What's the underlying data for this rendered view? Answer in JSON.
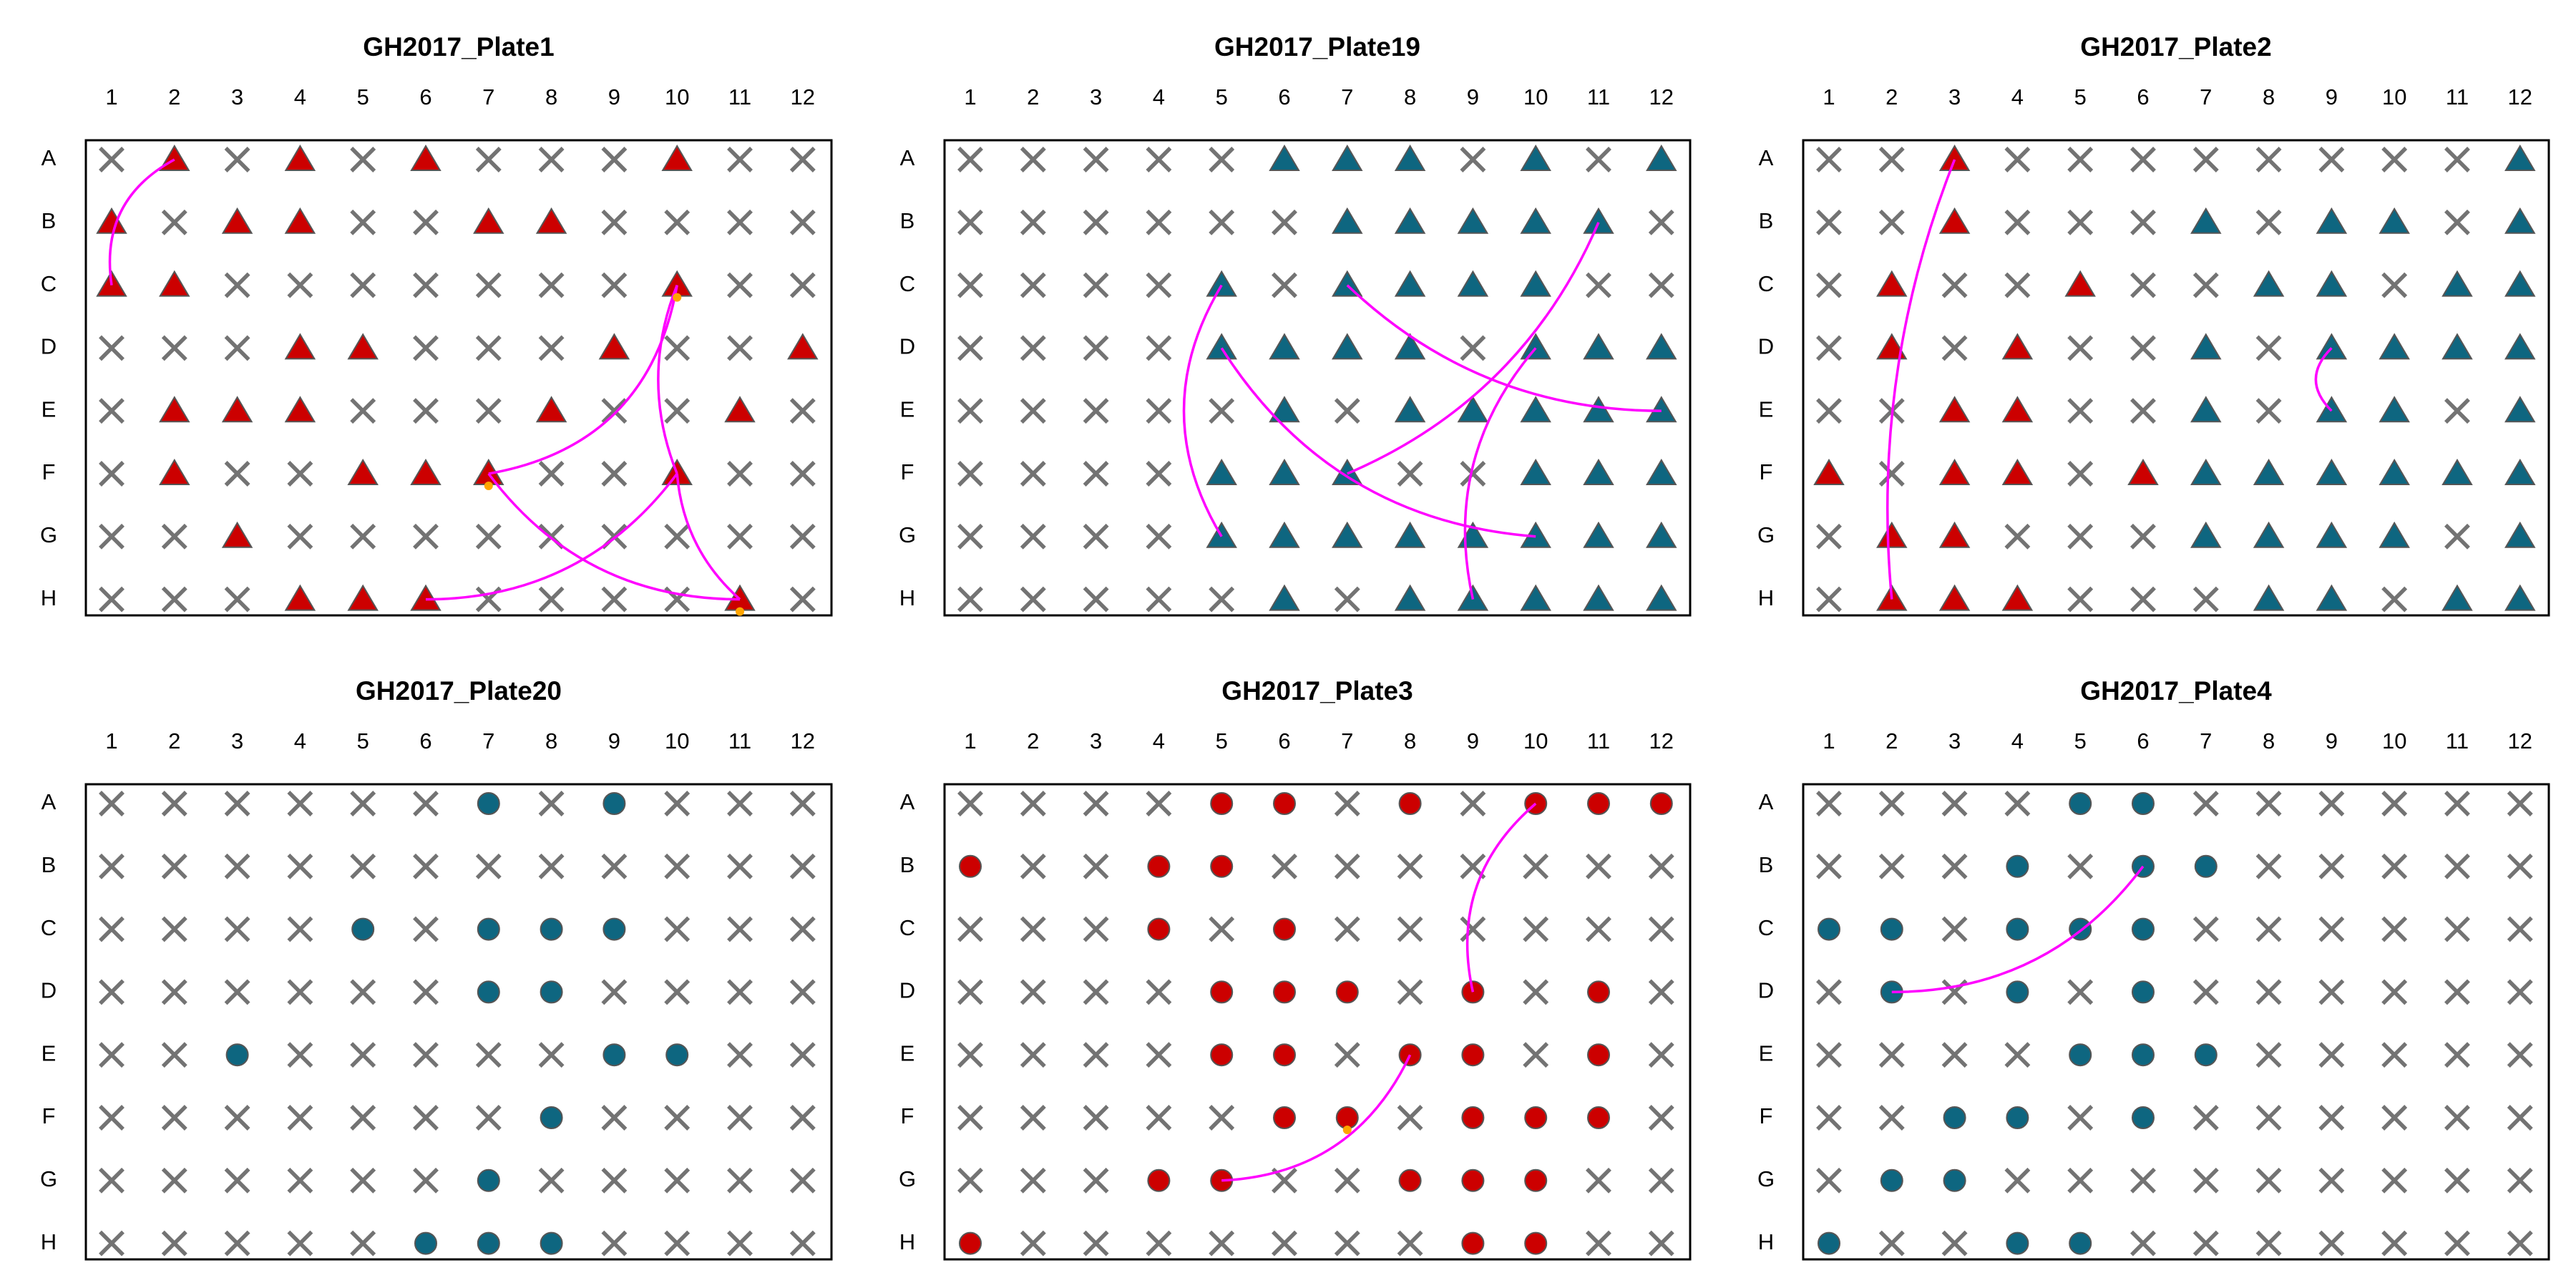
{
  "rows": [
    "A",
    "B",
    "C",
    "D",
    "E",
    "F",
    "G",
    "H"
  ],
  "columns": [
    "1",
    "2",
    "3",
    "4",
    "5",
    "6",
    "7",
    "8",
    "9",
    "10",
    "11",
    "12"
  ],
  "colors": {
    "red": "#cc0000",
    "teal": "#0e6680",
    "empty_marker": "#737373",
    "link": "#ff00ff",
    "dot": "#ffa500",
    "frame": "#000000"
  },
  "chart_data": [
    {
      "type": "scatter",
      "title": "GH2017_Plate1",
      "shape": "triangle",
      "wells": [
        {
          "well": "A2",
          "color": "red"
        },
        {
          "well": "A4",
          "color": "red"
        },
        {
          "well": "A6",
          "color": "red"
        },
        {
          "well": "A10",
          "color": "red"
        },
        {
          "well": "B1",
          "color": "red"
        },
        {
          "well": "B3",
          "color": "red"
        },
        {
          "well": "B4",
          "color": "red"
        },
        {
          "well": "B7",
          "color": "red"
        },
        {
          "well": "B8",
          "color": "red"
        },
        {
          "well": "C1",
          "color": "red"
        },
        {
          "well": "C2",
          "color": "red"
        },
        {
          "well": "C10",
          "color": "red"
        },
        {
          "well": "D4",
          "color": "red"
        },
        {
          "well": "D5",
          "color": "red"
        },
        {
          "well": "D9",
          "color": "red"
        },
        {
          "well": "D12",
          "color": "red"
        },
        {
          "well": "E2",
          "color": "red"
        },
        {
          "well": "E3",
          "color": "red"
        },
        {
          "well": "E4",
          "color": "red"
        },
        {
          "well": "E8",
          "color": "red"
        },
        {
          "well": "E11",
          "color": "red"
        },
        {
          "well": "F2",
          "color": "red"
        },
        {
          "well": "F5",
          "color": "red"
        },
        {
          "well": "F6",
          "color": "red"
        },
        {
          "well": "F7",
          "color": "red"
        },
        {
          "well": "F10",
          "color": "red"
        },
        {
          "well": "G3",
          "color": "red"
        },
        {
          "well": "H4",
          "color": "red"
        },
        {
          "well": "H5",
          "color": "red"
        },
        {
          "well": "H6",
          "color": "red"
        },
        {
          "well": "H11",
          "color": "red"
        }
      ],
      "links": [
        {
          "from": "A2",
          "to": "C1",
          "bend": 0.35
        },
        {
          "from": "F7",
          "to": "C10",
          "bend": 0.35
        },
        {
          "from": "C10",
          "to": "F10",
          "bend": 0.2
        },
        {
          "from": "H6",
          "to": "F10",
          "bend": 0.25
        },
        {
          "from": "F7",
          "to": "H11",
          "bend": 0.25
        },
        {
          "from": "F10",
          "to": "H11",
          "bend": 0.2
        }
      ],
      "dots": [
        "C10",
        "F7",
        "H11"
      ]
    },
    {
      "type": "scatter",
      "title": "GH2017_Plate19",
      "shape": "triangle",
      "wells": [
        {
          "well": "A6",
          "color": "teal"
        },
        {
          "well": "A7",
          "color": "teal"
        },
        {
          "well": "A8",
          "color": "teal"
        },
        {
          "well": "A10",
          "color": "teal"
        },
        {
          "well": "A12",
          "color": "teal"
        },
        {
          "well": "B7",
          "color": "teal"
        },
        {
          "well": "B8",
          "color": "teal"
        },
        {
          "well": "B9",
          "color": "teal"
        },
        {
          "well": "B10",
          "color": "teal"
        },
        {
          "well": "B11",
          "color": "teal"
        },
        {
          "well": "C5",
          "color": "teal"
        },
        {
          "well": "C7",
          "color": "teal"
        },
        {
          "well": "C8",
          "color": "teal"
        },
        {
          "well": "C9",
          "color": "teal"
        },
        {
          "well": "C10",
          "color": "teal"
        },
        {
          "well": "D5",
          "color": "teal"
        },
        {
          "well": "D6",
          "color": "teal"
        },
        {
          "well": "D7",
          "color": "teal"
        },
        {
          "well": "D8",
          "color": "teal"
        },
        {
          "well": "D10",
          "color": "teal"
        },
        {
          "well": "D11",
          "color": "teal"
        },
        {
          "well": "D12",
          "color": "teal"
        },
        {
          "well": "E6",
          "color": "teal"
        },
        {
          "well": "E8",
          "color": "teal"
        },
        {
          "well": "E9",
          "color": "teal"
        },
        {
          "well": "E10",
          "color": "teal"
        },
        {
          "well": "E11",
          "color": "teal"
        },
        {
          "well": "E12",
          "color": "teal"
        },
        {
          "well": "F5",
          "color": "teal"
        },
        {
          "well": "F6",
          "color": "teal"
        },
        {
          "well": "F7",
          "color": "teal"
        },
        {
          "well": "F10",
          "color": "teal"
        },
        {
          "well": "F11",
          "color": "teal"
        },
        {
          "well": "F12",
          "color": "teal"
        },
        {
          "well": "G5",
          "color": "teal"
        },
        {
          "well": "G6",
          "color": "teal"
        },
        {
          "well": "G7",
          "color": "teal"
        },
        {
          "well": "G8",
          "color": "teal"
        },
        {
          "well": "G9",
          "color": "teal"
        },
        {
          "well": "G10",
          "color": "teal"
        },
        {
          "well": "G11",
          "color": "teal"
        },
        {
          "well": "G12",
          "color": "teal"
        },
        {
          "well": "H6",
          "color": "teal"
        },
        {
          "well": "H8",
          "color": "teal"
        },
        {
          "well": "H9",
          "color": "teal"
        },
        {
          "well": "H10",
          "color": "teal"
        },
        {
          "well": "H11",
          "color": "teal"
        },
        {
          "well": "H12",
          "color": "teal"
        }
      ],
      "links": [
        {
          "from": "C5",
          "to": "G5",
          "bend": 0.3
        },
        {
          "from": "D5",
          "to": "G10",
          "bend": 0.25
        },
        {
          "from": "C7",
          "to": "E12",
          "bend": 0.2
        },
        {
          "from": "F7",
          "to": "B11",
          "bend": 0.2
        },
        {
          "from": "D10",
          "to": "H9",
          "bend": 0.25
        }
      ],
      "dots": []
    },
    {
      "type": "scatter",
      "title": "GH2017_Plate2",
      "shape": "triangle",
      "wells": [
        {
          "well": "A3",
          "color": "red"
        },
        {
          "well": "A12",
          "color": "teal"
        },
        {
          "well": "B3",
          "color": "red"
        },
        {
          "well": "B7",
          "color": "teal"
        },
        {
          "well": "B9",
          "color": "teal"
        },
        {
          "well": "B10",
          "color": "teal"
        },
        {
          "well": "B12",
          "color": "teal"
        },
        {
          "well": "C2",
          "color": "red"
        },
        {
          "well": "C5",
          "color": "red"
        },
        {
          "well": "C8",
          "color": "teal"
        },
        {
          "well": "C9",
          "color": "teal"
        },
        {
          "well": "C11",
          "color": "teal"
        },
        {
          "well": "C12",
          "color": "teal"
        },
        {
          "well": "D2",
          "color": "red"
        },
        {
          "well": "D4",
          "color": "red"
        },
        {
          "well": "D7",
          "color": "teal"
        },
        {
          "well": "D9",
          "color": "teal"
        },
        {
          "well": "D10",
          "color": "teal"
        },
        {
          "well": "D11",
          "color": "teal"
        },
        {
          "well": "D12",
          "color": "teal"
        },
        {
          "well": "E3",
          "color": "red"
        },
        {
          "well": "E4",
          "color": "red"
        },
        {
          "well": "E7",
          "color": "teal"
        },
        {
          "well": "E9",
          "color": "teal"
        },
        {
          "well": "E10",
          "color": "teal"
        },
        {
          "well": "E12",
          "color": "teal"
        },
        {
          "well": "F1",
          "color": "red"
        },
        {
          "well": "F3",
          "color": "red"
        },
        {
          "well": "F4",
          "color": "red"
        },
        {
          "well": "F6",
          "color": "red"
        },
        {
          "well": "F7",
          "color": "teal"
        },
        {
          "well": "F8",
          "color": "teal"
        },
        {
          "well": "F9",
          "color": "teal"
        },
        {
          "well": "F10",
          "color": "teal"
        },
        {
          "well": "F11",
          "color": "teal"
        },
        {
          "well": "F12",
          "color": "teal"
        },
        {
          "well": "G2",
          "color": "red"
        },
        {
          "well": "G3",
          "color": "red"
        },
        {
          "well": "G7",
          "color": "teal"
        },
        {
          "well": "G8",
          "color": "teal"
        },
        {
          "well": "G9",
          "color": "teal"
        },
        {
          "well": "G10",
          "color": "teal"
        },
        {
          "well": "G12",
          "color": "teal"
        },
        {
          "well": "H2",
          "color": "red"
        },
        {
          "well": "H3",
          "color": "red"
        },
        {
          "well": "H4",
          "color": "red"
        },
        {
          "well": "H8",
          "color": "teal"
        },
        {
          "well": "H9",
          "color": "teal"
        },
        {
          "well": "H11",
          "color": "teal"
        },
        {
          "well": "H12",
          "color": "teal"
        }
      ],
      "links": [
        {
          "from": "A3",
          "to": "H2",
          "bend": 0.12
        },
        {
          "from": "D9",
          "to": "E9",
          "bend": 0.5
        }
      ],
      "dots": []
    },
    {
      "type": "scatter",
      "title": "GH2017_Plate20",
      "shape": "circle",
      "wells": [
        {
          "well": "A7",
          "color": "teal"
        },
        {
          "well": "A9",
          "color": "teal"
        },
        {
          "well": "C5",
          "color": "teal"
        },
        {
          "well": "C7",
          "color": "teal"
        },
        {
          "well": "C8",
          "color": "teal"
        },
        {
          "well": "C9",
          "color": "teal"
        },
        {
          "well": "D7",
          "color": "teal"
        },
        {
          "well": "D8",
          "color": "teal"
        },
        {
          "well": "E3",
          "color": "teal"
        },
        {
          "well": "E9",
          "color": "teal"
        },
        {
          "well": "E10",
          "color": "teal"
        },
        {
          "well": "F8",
          "color": "teal"
        },
        {
          "well": "G7",
          "color": "teal"
        },
        {
          "well": "H6",
          "color": "teal"
        },
        {
          "well": "H7",
          "color": "teal"
        },
        {
          "well": "H8",
          "color": "teal"
        }
      ],
      "links": [],
      "dots": []
    },
    {
      "type": "scatter",
      "title": "GH2017_Plate3",
      "shape": "circle",
      "wells": [
        {
          "well": "A5",
          "color": "red"
        },
        {
          "well": "A6",
          "color": "red"
        },
        {
          "well": "A8",
          "color": "red"
        },
        {
          "well": "A10",
          "color": "red"
        },
        {
          "well": "A11",
          "color": "red"
        },
        {
          "well": "A12",
          "color": "red"
        },
        {
          "well": "B1",
          "color": "red"
        },
        {
          "well": "B4",
          "color": "red"
        },
        {
          "well": "B5",
          "color": "red"
        },
        {
          "well": "C4",
          "color": "red"
        },
        {
          "well": "C6",
          "color": "red"
        },
        {
          "well": "D5",
          "color": "red"
        },
        {
          "well": "D6",
          "color": "red"
        },
        {
          "well": "D7",
          "color": "red"
        },
        {
          "well": "D9",
          "color": "red"
        },
        {
          "well": "D11",
          "color": "red"
        },
        {
          "well": "E5",
          "color": "red"
        },
        {
          "well": "E6",
          "color": "red"
        },
        {
          "well": "E8",
          "color": "red"
        },
        {
          "well": "E9",
          "color": "red"
        },
        {
          "well": "E11",
          "color": "red"
        },
        {
          "well": "F6",
          "color": "red"
        },
        {
          "well": "F7",
          "color": "red"
        },
        {
          "well": "F9",
          "color": "red"
        },
        {
          "well": "F10",
          "color": "red"
        },
        {
          "well": "F11",
          "color": "red"
        },
        {
          "well": "G4",
          "color": "red"
        },
        {
          "well": "G5",
          "color": "red"
        },
        {
          "well": "G8",
          "color": "red"
        },
        {
          "well": "G9",
          "color": "red"
        },
        {
          "well": "G10",
          "color": "red"
        },
        {
          "well": "H1",
          "color": "red"
        },
        {
          "well": "H9",
          "color": "red"
        },
        {
          "well": "H10",
          "color": "red"
        }
      ],
      "links": [
        {
          "from": "A10",
          "to": "D9",
          "bend": 0.3
        },
        {
          "from": "G5",
          "to": "E8",
          "bend": 0.3
        }
      ],
      "dots": [
        "F7"
      ]
    },
    {
      "type": "scatter",
      "title": "GH2017_Plate4",
      "shape": "circle",
      "wells": [
        {
          "well": "A5",
          "color": "teal"
        },
        {
          "well": "A6",
          "color": "teal"
        },
        {
          "well": "B4",
          "color": "teal"
        },
        {
          "well": "B6",
          "color": "teal"
        },
        {
          "well": "B7",
          "color": "teal"
        },
        {
          "well": "C1",
          "color": "teal"
        },
        {
          "well": "C2",
          "color": "teal"
        },
        {
          "well": "C4",
          "color": "teal"
        },
        {
          "well": "C5",
          "color": "teal"
        },
        {
          "well": "C6",
          "color": "teal"
        },
        {
          "well": "D2",
          "color": "teal"
        },
        {
          "well": "D4",
          "color": "teal"
        },
        {
          "well": "D6",
          "color": "teal"
        },
        {
          "well": "E5",
          "color": "teal"
        },
        {
          "well": "E6",
          "color": "teal"
        },
        {
          "well": "E7",
          "color": "teal"
        },
        {
          "well": "F3",
          "color": "teal"
        },
        {
          "well": "F4",
          "color": "teal"
        },
        {
          "well": "F6",
          "color": "teal"
        },
        {
          "well": "G2",
          "color": "teal"
        },
        {
          "well": "G3",
          "color": "teal"
        },
        {
          "well": "H1",
          "color": "teal"
        },
        {
          "well": "H4",
          "color": "teal"
        },
        {
          "well": "H5",
          "color": "teal"
        }
      ],
      "links": [
        {
          "from": "D2",
          "to": "B6",
          "bend": 0.25
        }
      ],
      "dots": []
    }
  ]
}
